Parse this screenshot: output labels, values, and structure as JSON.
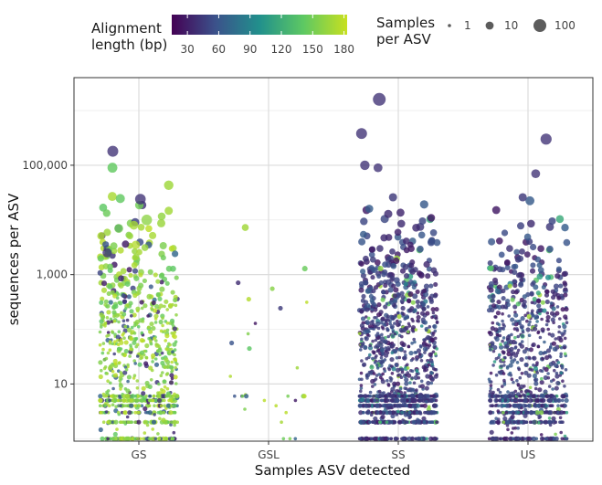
{
  "chart_data": {
    "type": "scatter",
    "subtype": "jittered strip plot",
    "xlabel": "Samples ASV detected",
    "ylabel": "sequences per ASV",
    "categories": [
      "GS",
      "GSL",
      "SS",
      "US"
    ],
    "y_scale": "log10",
    "y_range": [
      0.9,
      4000000
    ],
    "y_ticks": [
      {
        "value": 10,
        "label": "10"
      },
      {
        "value": 1000,
        "label": "1,000"
      },
      {
        "value": 100000,
        "label": "100,000"
      }
    ],
    "grid": true,
    "legend_position": "top",
    "color_legend": {
      "title_line1": "Alignment",
      "title_line2": "length (bp)",
      "min": 15,
      "max": 183,
      "ticks": [
        30,
        60,
        90,
        120,
        150,
        180
      ],
      "palette": [
        "#440154",
        "#3b528b",
        "#21908c",
        "#5dc863",
        "#c7e020"
      ]
    },
    "size_legend": {
      "title_line1": "Samples",
      "title_line2": "per ASV",
      "values": [
        1,
        10,
        100
      ]
    },
    "series": [
      {
        "category": "GS",
        "approx_point_count": 900,
        "y_min": 1,
        "y_max": 180000,
        "alignment_mostly": "high (130-180 bp), with some low"
      },
      {
        "category": "GSL",
        "approx_point_count": 30,
        "y_min": 2,
        "y_max": 18000,
        "alignment_mostly": "high (140-180 bp)"
      },
      {
        "category": "SS",
        "approx_point_count": 1300,
        "y_min": 2,
        "y_max": 1600000,
        "alignment_mostly": "low (30-60 bp)"
      },
      {
        "category": "US",
        "approx_point_count": 950,
        "y_min": 1,
        "y_max": 300000,
        "alignment_mostly": "low (30-60 bp)"
      }
    ],
    "highlight_points": [
      {
        "category": "GS",
        "y": 180000,
        "alignment": 40,
        "samples": 40
      },
      {
        "category": "GS",
        "y": 24000,
        "alignment": 40,
        "samples": 35
      },
      {
        "category": "GS",
        "y": 10000,
        "alignment": 160,
        "samples": 35
      },
      {
        "category": "GS",
        "y": 8000,
        "alignment": 170,
        "samples": 15
      },
      {
        "category": "GS",
        "y": 7000,
        "alignment": 150,
        "samples": 15
      },
      {
        "category": "GS",
        "y": 3500,
        "alignment": 175,
        "samples": 12
      },
      {
        "category": "GS",
        "y": 2500,
        "alignment": 40,
        "samples": 18
      },
      {
        "category": "SS",
        "y": 1600000,
        "alignment": 40,
        "samples": 100
      },
      {
        "category": "SS",
        "y": 380000,
        "alignment": 40,
        "samples": 40
      },
      {
        "category": "SS",
        "y": 100000,
        "alignment": 40,
        "samples": 20
      },
      {
        "category": "SS",
        "y": 90000,
        "alignment": 40,
        "samples": 15
      },
      {
        "category": "US",
        "y": 300000,
        "alignment": 40,
        "samples": 45
      },
      {
        "category": "US",
        "y": 70000,
        "alignment": 40,
        "samples": 15
      }
    ]
  }
}
